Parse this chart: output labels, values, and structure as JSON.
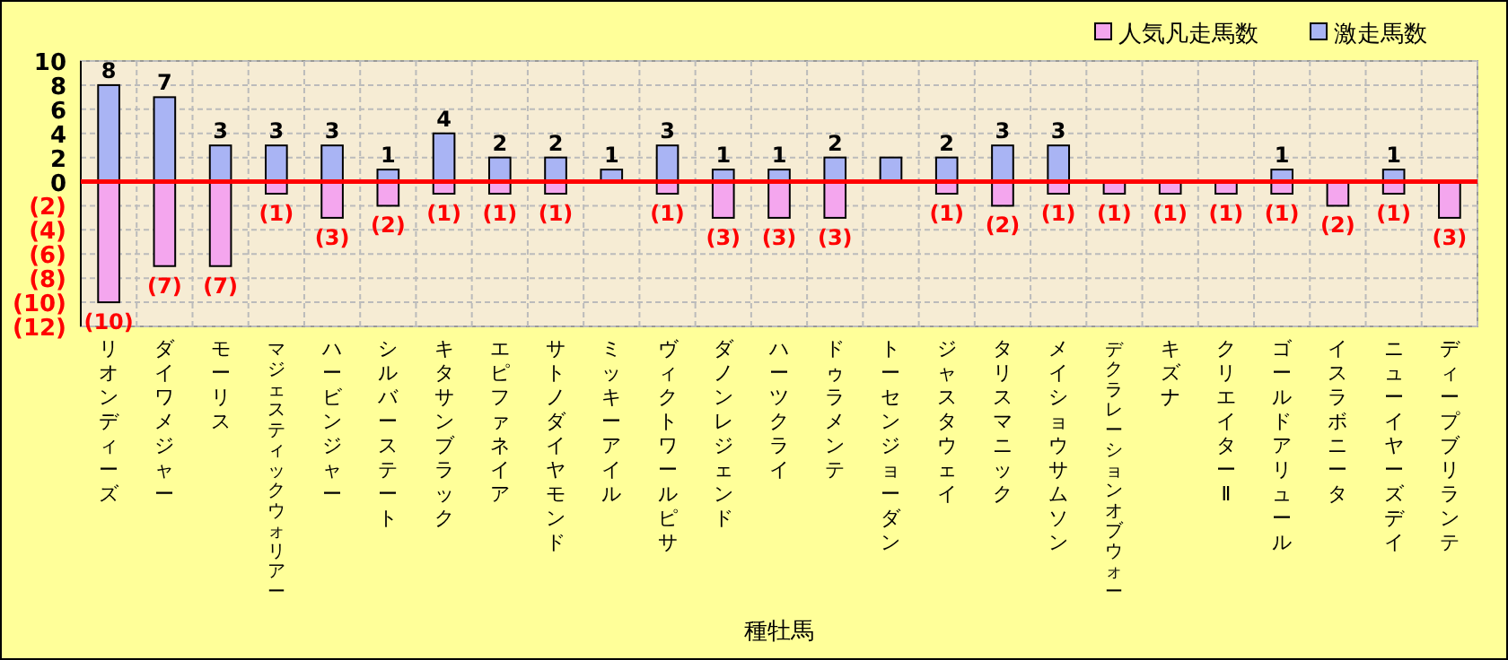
{
  "chart_data": {
    "type": "bar",
    "stacked": true,
    "xlabel": "種牡馬",
    "categories": [
      "リオンディーズ",
      "ダイワメジャー",
      "モーリス",
      "マジェスティックウォリアー",
      "ハービンジャー",
      "シルバーステート",
      "キタサンブラック",
      "エピファネイア",
      "サトノダイヤモンド",
      "ミッキーアイル",
      "ヴィクトワールピサ",
      "ダノンレジェンド",
      "ハーツクライ",
      "ドゥラメンテ",
      "トーセンジョーダン",
      "ジャスタウェイ",
      "タリスマニック",
      "メイショウサムソン",
      "デクラレーションオブウォー",
      "キズナ",
      "クリエイターⅡ",
      "ゴールドアリュール",
      "イスラボニータ",
      "ニューイヤーズデイ",
      "ディープブリランテ"
    ],
    "series": [
      {
        "name": "人気凡走馬数",
        "color": "#f4a6ee",
        "values": [
          -10,
          -7,
          -7,
          -1,
          -3,
          -2,
          -1,
          -1,
          -1,
          0,
          -1,
          -3,
          -3,
          -3,
          0,
          -1,
          -2,
          -1,
          -1,
          -1,
          -1,
          -1,
          -2,
          -1,
          -3
        ],
        "value_labels": [
          "(10)",
          "(7)",
          "(7)",
          "(1)",
          "(3)",
          "(2)",
          "(1)",
          "(1)",
          "(1)",
          null,
          "(1)",
          "(3)",
          "(3)",
          "(3)",
          null,
          "(1)",
          "(2)",
          "(1)",
          "(1)",
          "(1)",
          "(1)",
          "(1)",
          "(2)",
          "(1)",
          "(3)"
        ]
      },
      {
        "name": "激走馬数",
        "color": "#a9b4f4",
        "values": [
          8,
          7,
          3,
          3,
          3,
          1,
          4,
          2,
          2,
          1,
          3,
          1,
          1,
          2,
          2,
          2,
          3,
          3,
          0,
          0,
          0,
          1,
          0,
          1,
          0
        ],
        "value_labels": [
          "8",
          "7",
          "3",
          "3",
          "3",
          "1",
          "4",
          "2",
          "2",
          "1",
          "3",
          "1",
          "1",
          "2",
          null,
          "2",
          "3",
          "3",
          null,
          null,
          null,
          "1",
          null,
          "1",
          null
        ]
      }
    ],
    "ylim": [
      -12,
      10
    ],
    "yticks": [
      10,
      8,
      6,
      4,
      2,
      0,
      {
        "value": -2,
        "label": "(2)"
      },
      {
        "value": -4,
        "label": "(4)"
      },
      {
        "value": -6,
        "label": "(6)"
      },
      {
        "value": -8,
        "label": "(8)"
      },
      {
        "value": -10,
        "label": "(10)"
      },
      {
        "value": -12,
        "label": "(12)"
      }
    ],
    "grid": true,
    "legend": "top right",
    "ref_lines": [
      {
        "axis": "y",
        "value": 0,
        "color": "#ff0000"
      }
    ]
  }
}
